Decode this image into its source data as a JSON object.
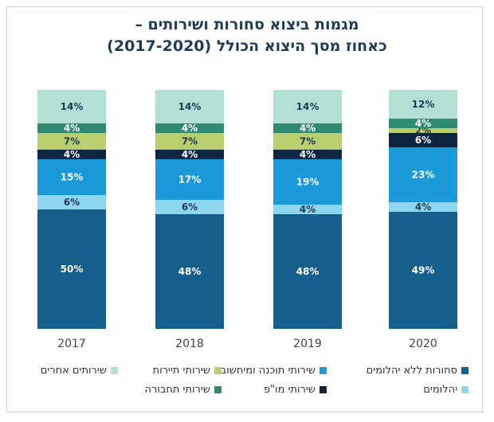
{
  "chart_data": {
    "type": "bar",
    "stacked": true,
    "title_lines": [
      "מגמות ביצוא סחורות ושירותים –",
      "כאחוז מסך היצוא הכולל (2017-2020)"
    ],
    "categories": [
      "2017",
      "2018",
      "2019",
      "2020"
    ],
    "ylim": [
      0,
      100
    ],
    "grid": false,
    "legend_position": "bottom",
    "series": [
      {
        "name": "סחורות ללא יהלומים",
        "color": "#145f8c",
        "label_color": "#ffffff",
        "values": [
          50,
          48,
          48,
          49
        ]
      },
      {
        "name": "יהלומים",
        "color": "#8dd6f0",
        "label_color": "#1f3b57",
        "values": [
          6,
          6,
          4,
          4
        ]
      },
      {
        "name": "שירותי תוכנה ומיחשוב",
        "color": "#1a9ad9",
        "label_color": "#ffffff",
        "values": [
          15,
          17,
          19,
          23
        ]
      },
      {
        "name": "שירותי מו\"פ",
        "color": "#0d2540",
        "label_color": "#ffffff",
        "values": [
          4,
          4,
          4,
          6
        ]
      },
      {
        "name": "שירותי תיירות",
        "color": "#b9cf6e",
        "label_color": "#1f3b57",
        "values": [
          7,
          7,
          7,
          2
        ]
      },
      {
        "name": "שירותי תחבורה",
        "color": "#2f8a72",
        "label_color": "#ffffff",
        "values": [
          4,
          4,
          4,
          4
        ]
      },
      {
        "name": "שירותים אחרים",
        "color": "#b3e0d4",
        "label_color": "#1f3b57",
        "values": [
          14,
          14,
          14,
          12
        ]
      }
    ]
  }
}
